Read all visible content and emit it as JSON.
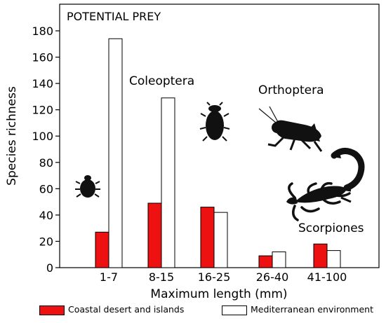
{
  "colors": {
    "coastal": "#ee1111",
    "mediterranean": "#ffffff",
    "stroke": "#000000",
    "silhouette": "#111111"
  },
  "icons": [
    "beetle-small-icon",
    "beetle-large-icon",
    "grasshopper-icon",
    "scorpion-icon"
  ],
  "chart_data": {
    "type": "bar",
    "title": "POTENTIAL PREY",
    "xlabel": "Maximum length (mm)",
    "ylabel": "Species richness",
    "categories": [
      "1-7",
      "8-15",
      "16-25",
      "26-40",
      "41-100"
    ],
    "ylim": [
      0,
      190
    ],
    "yticks": [
      0,
      20,
      40,
      60,
      80,
      100,
      120,
      140,
      160,
      180
    ],
    "grid": false,
    "legend_position": "bottom",
    "series": [
      {
        "name": "Coastal desert and islands",
        "color": "#ee1111",
        "values": [
          27,
          49,
          46,
          9,
          18
        ]
      },
      {
        "name": "Mediterranean environment",
        "color": "#ffffff",
        "values": [
          174,
          129,
          42,
          12,
          13
        ]
      }
    ],
    "annotations": [
      "Coleoptera",
      "Orthoptera",
      "Scorpiones"
    ]
  }
}
